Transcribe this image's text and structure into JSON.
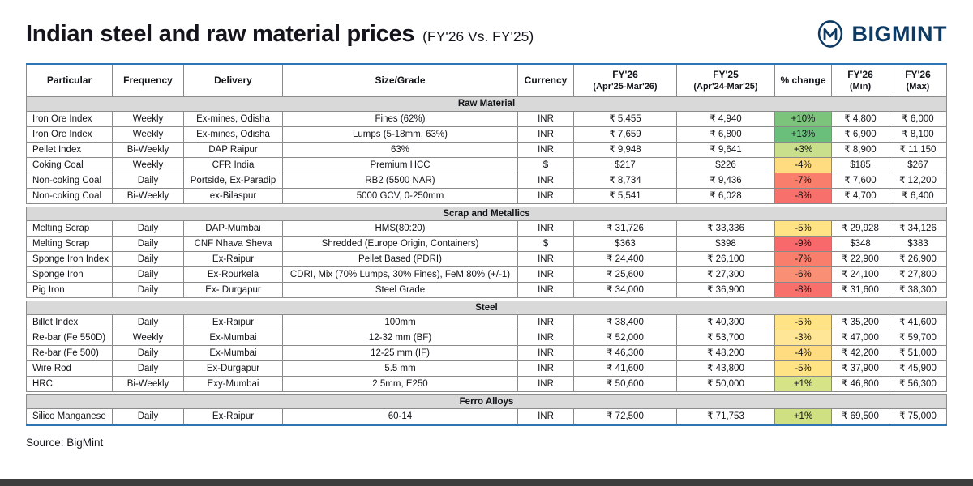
{
  "page": {
    "title": "Indian steel and raw material prices",
    "subtitle": "(FY'26 Vs. FY'25)",
    "brand": "BIGMINT",
    "brand_color": "#0d3a63",
    "source": "Source: BigMint",
    "accent_line_color": "#2e75b6",
    "section_bg_color": "#d9d9d9"
  },
  "chart_data": {
    "type": "table",
    "title": "Indian steel and raw material prices (FY'26 Vs. FY'25)",
    "columns": [
      {
        "label": "Particular"
      },
      {
        "label": "Frequency"
      },
      {
        "label": "Delivery"
      },
      {
        "label": "Size/Grade"
      },
      {
        "label": "Currency"
      },
      {
        "label": "FY'26",
        "sub": "(Apr'25-Mar'26)"
      },
      {
        "label": "FY'25",
        "sub": "(Apr'24-Mar'25)"
      },
      {
        "label": "% change"
      },
      {
        "label": "FY'26",
        "sub": "(Min)"
      },
      {
        "label": "FY'26",
        "sub": "(Max)"
      }
    ],
    "sections": [
      {
        "name": "Raw Material",
        "rows": [
          {
            "particular": "Iron Ore Index",
            "frequency": "Weekly",
            "delivery": "Ex-mines, Odisha",
            "size_grade": "Fines (62%)",
            "currency": "INR",
            "fy26": "₹ 5,455",
            "fy25": "₹ 4,940",
            "change": "+10%",
            "change_color": "#7cc47c",
            "min": "₹ 4,800",
            "max": "₹ 6,000"
          },
          {
            "particular": "Iron Ore Index",
            "frequency": "Weekly",
            "delivery": "Ex-mines, Odisha",
            "size_grade": "Lumps (5-18mm, 63%)",
            "currency": "INR",
            "fy26": "₹ 7,659",
            "fy25": "₹ 6,800",
            "change": "+13%",
            "change_color": "#6abf7b",
            "min": "₹ 6,900",
            "max": "₹ 8,100"
          },
          {
            "particular": "Pellet Index",
            "frequency": "Bi-Weekly",
            "delivery": "DAP Raipur",
            "size_grade": "63%",
            "currency": "INR",
            "fy26": "₹ 9,948",
            "fy25": "₹ 9,641",
            "change": "+3%",
            "change_color": "#c9df8b",
            "min": "₹ 8,900",
            "max": "₹ 11,150"
          },
          {
            "particular": "Coking Coal",
            "frequency": "Weekly",
            "delivery": "CFR India",
            "size_grade": "Premium HCC",
            "currency": "$",
            "fy26": "$217",
            "fy25": "$226",
            "change": "-4%",
            "change_color": "#fedc7f",
            "min": "$185",
            "max": "$267"
          },
          {
            "particular": "Non-coking Coal",
            "frequency": "Daily",
            "delivery": "Portside, Ex-Paradip",
            "size_grade": "RB2 (5500 NAR)",
            "currency": "INR",
            "fy26": "₹ 8,734",
            "fy25": "₹ 9,436",
            "change": "-7%",
            "change_color": "#f97e6c",
            "min": "₹ 7,600",
            "max": "₹ 12,200"
          },
          {
            "particular": "Non-coking Coal",
            "frequency": "Bi-Weekly",
            "delivery": "ex-Bilaspur",
            "size_grade": "5000 GCV, 0-250mm",
            "currency": "INR",
            "fy26": "₹ 5,541",
            "fy25": "₹ 6,028",
            "change": "-8%",
            "change_color": "#f8706b",
            "min": "₹ 4,700",
            "max": "₹ 6,400"
          }
        ]
      },
      {
        "name": "Scrap and Metallics",
        "rows": [
          {
            "particular": "Melting Scrap",
            "frequency": "Daily",
            "delivery": "DAP-Mumbai",
            "size_grade": "HMS(80:20)",
            "currency": "INR",
            "fy26": "₹ 31,726",
            "fy25": "₹ 33,336",
            "change": "-5%",
            "change_color": "#ffe385",
            "min": "₹ 29,928",
            "max": "₹ 34,126"
          },
          {
            "particular": "Melting Scrap",
            "frequency": "Daily",
            "delivery": "CNF Nhava Sheva",
            "size_grade": "Shredded (Europe Origin, Containers)",
            "currency": "$",
            "fy26": "$363",
            "fy25": "$398",
            "change": "-9%",
            "change_color": "#f8696b",
            "min": "$348",
            "max": "$383"
          },
          {
            "particular": "Sponge Iron Index",
            "frequency": "Daily",
            "delivery": "Ex-Raipur",
            "size_grade": "Pellet Based (PDRI)",
            "currency": "INR",
            "fy26": "₹ 24,400",
            "fy25": "₹ 26,100",
            "change": "-7%",
            "change_color": "#f97e6c",
            "min": "₹ 22,900",
            "max": "₹ 26,900"
          },
          {
            "particular": "Sponge Iron",
            "frequency": "Daily",
            "delivery": "Ex-Rourkela",
            "size_grade": "CDRI, Mix (70% Lumps, 30% Fines), FeM 80% (+/-1)",
            "currency": "INR",
            "fy26": "₹ 25,600",
            "fy25": "₹ 27,300",
            "change": "-6%",
            "change_color": "#f99076",
            "min": "₹ 24,100",
            "max": "₹ 27,800"
          },
          {
            "particular": "Pig Iron",
            "frequency": "Daily",
            "delivery": "Ex- Durgapur",
            "size_grade": "Steel Grade",
            "currency": "INR",
            "fy26": "₹ 34,000",
            "fy25": "₹ 36,900",
            "change": "-8%",
            "change_color": "#f8706b",
            "min": "₹ 31,600",
            "max": "₹ 38,300"
          }
        ]
      },
      {
        "name": "Steel",
        "rows": [
          {
            "particular": "Billet Index",
            "frequency": "Daily",
            "delivery": "Ex-Raipur",
            "size_grade": "100mm",
            "currency": "INR",
            "fy26": "₹ 38,400",
            "fy25": "₹ 40,300",
            "change": "-5%",
            "change_color": "#ffe385",
            "min": "₹ 35,200",
            "max": "₹ 41,600"
          },
          {
            "particular": "Re-bar (Fe 550D)",
            "frequency": "Weekly",
            "delivery": "Ex-Mumbai",
            "size_grade": "12-32 mm (BF)",
            "currency": "INR",
            "fy26": "₹ 52,000",
            "fy25": "₹ 53,700",
            "change": "-3%",
            "change_color": "#ffe696",
            "min": "₹ 47,000",
            "max": "₹ 59,700"
          },
          {
            "particular": "Re-bar (Fe 500)",
            "frequency": "Daily",
            "delivery": "Ex-Mumbai",
            "size_grade": "12-25 mm (IF)",
            "currency": "INR",
            "fy26": "₹ 46,300",
            "fy25": "₹ 48,200",
            "change": "-4%",
            "change_color": "#fedc7f",
            "min": "₹ 42,200",
            "max": "₹ 51,000"
          },
          {
            "particular": "Wire Rod",
            "frequency": "Daily",
            "delivery": "Ex-Durgapur",
            "size_grade": "5.5 mm",
            "currency": "INR",
            "fy26": "₹ 41,600",
            "fy25": "₹ 43,800",
            "change": "-5%",
            "change_color": "#ffe385",
            "min": "₹ 37,900",
            "max": "₹ 45,900"
          },
          {
            "particular": "HRC",
            "frequency": "Bi-Weekly",
            "delivery": "Exy-Mumbai",
            "size_grade": "2.5mm, E250",
            "currency": "INR",
            "fy26": "₹ 50,600",
            "fy25": "₹ 50,000",
            "change": "+1%",
            "change_color": "#d7e387",
            "min": "₹ 46,800",
            "max": "₹ 56,300"
          }
        ]
      },
      {
        "name": "Ferro Alloys",
        "rows": [
          {
            "particular": "Silico Manganese",
            "frequency": "Daily",
            "delivery": "Ex-Raipur",
            "size_grade": "60-14",
            "currency": "INR",
            "fy26": "₹ 72,500",
            "fy25": "₹ 71,753",
            "change": "+1%",
            "change_color": "#cfe083",
            "min": "₹ 69,500",
            "max": "₹ 75,000"
          }
        ]
      }
    ]
  }
}
